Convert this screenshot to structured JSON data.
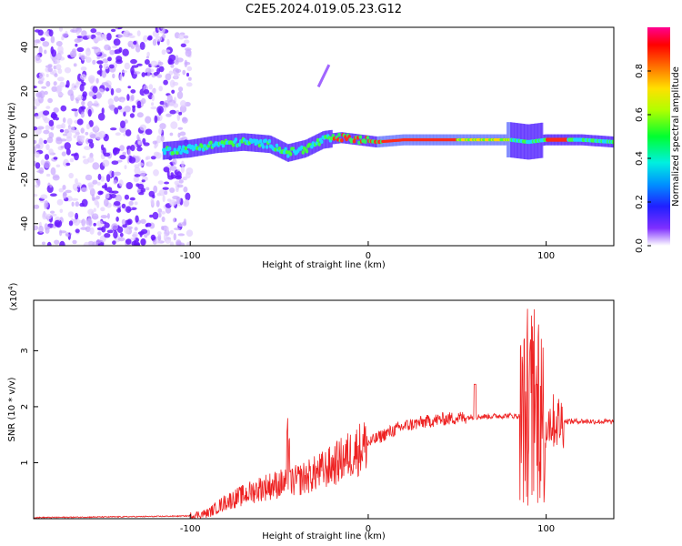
{
  "title": "C2E5.2024.019.05.23.G12",
  "chart_data": [
    {
      "type": "heatmap",
      "xlabel": "Height of straight line (km)",
      "ylabel": "Frequency (Hz)",
      "xlim": [
        -188,
        138
      ],
      "ylim": [
        -50,
        49
      ],
      "xticks": [
        -100,
        0,
        100
      ],
      "yticks": [
        -40,
        -20,
        0,
        20,
        40
      ],
      "colorbar": {
        "label": "Normalized spectral amplitude",
        "range": [
          0,
          1
        ],
        "ticks": [
          0.0,
          0.2,
          0.4,
          0.6,
          0.8
        ],
        "colors": [
          "#ffffff",
          "#5500ff",
          "#0080ff",
          "#00ffff",
          "#00ff40",
          "#aaff00",
          "#ffff00",
          "#ff8000",
          "#ff0000",
          "#ff00aa"
        ]
      },
      "ridge": {
        "x": [
          -115,
          -100,
          -85,
          -70,
          -55,
          -45,
          -35,
          -25,
          -15,
          -5,
          5,
          20,
          40,
          60,
          80,
          90,
          100,
          110,
          120,
          138
        ],
        "y": [
          -7,
          -6,
          -4,
          -3,
          -4,
          -8,
          -6,
          -2,
          -1,
          -2,
          -3,
          -2,
          -2,
          -2,
          -2,
          -3,
          -2,
          -2,
          -2,
          -3
        ]
      },
      "noise_region_x": [
        -188,
        -110
      ]
    },
    {
      "type": "line",
      "xlabel": "Height of straight line (km)",
      "ylabel": "SNR (10 * v/v)",
      "yscale_note": "(x10",
      "yscale_exp": "4",
      "xlim": [
        -188,
        138
      ],
      "ylim": [
        0,
        3.9
      ],
      "xticks": [
        -100,
        0,
        100
      ],
      "yticks": [
        1,
        2,
        3
      ],
      "color": "#ee2222",
      "envelope": {
        "x": [
          -188,
          -120,
          -100,
          -90,
          -80,
          -70,
          -60,
          -50,
          -40,
          -30,
          -20,
          -10,
          0,
          10,
          20,
          30,
          40,
          50,
          60,
          70,
          80,
          85,
          90,
          95,
          100,
          105,
          110,
          120,
          138
        ],
        "y": [
          0.02,
          0.04,
          0.05,
          0.1,
          0.3,
          0.42,
          0.55,
          0.62,
          0.68,
          0.8,
          0.95,
          1.15,
          1.35,
          1.52,
          1.65,
          1.72,
          1.77,
          1.8,
          1.82,
          1.83,
          1.84,
          1.83,
          1.8,
          1.78,
          1.76,
          1.74,
          1.74,
          1.74,
          1.73
        ]
      }
    }
  ]
}
